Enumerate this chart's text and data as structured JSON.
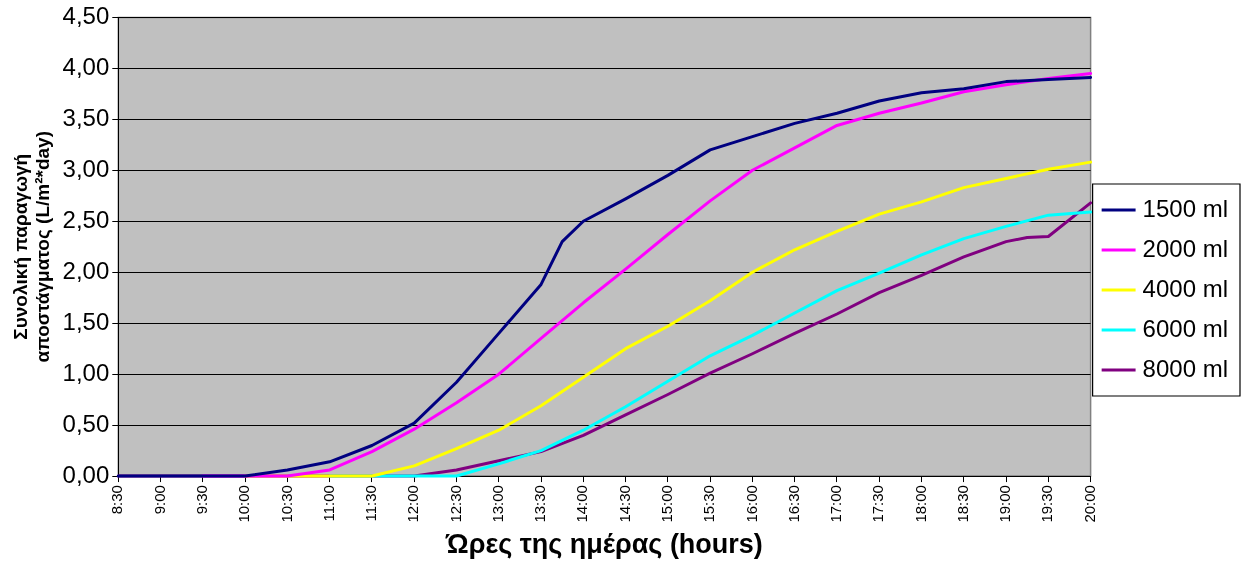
{
  "chart_data": {
    "type": "line",
    "xlabel": "Ώρες της ημέρας (hours)",
    "ylabel": "Συνολική παραγωγή\nαποστάγματος (L/m²*day)",
    "xlim": [
      8.5,
      20
    ],
    "xticks": [
      {
        "value": 8.5,
        "label": "8:30"
      },
      {
        "value": 9,
        "label": "9:00"
      },
      {
        "value": 9.5,
        "label": "9:30"
      },
      {
        "value": 10,
        "label": "10:00"
      },
      {
        "value": 10.5,
        "label": "10:30"
      },
      {
        "value": 11,
        "label": "11:00"
      },
      {
        "value": 11.5,
        "label": "11:30"
      },
      {
        "value": 12,
        "label": "12:00"
      },
      {
        "value": 12.5,
        "label": "12:30"
      },
      {
        "value": 13,
        "label": "13:00"
      },
      {
        "value": 13.5,
        "label": "13:30"
      },
      {
        "value": 14,
        "label": "14:00"
      },
      {
        "value": 14.5,
        "label": "14:30"
      },
      {
        "value": 15,
        "label": "15:00"
      },
      {
        "value": 15.5,
        "label": "15:30"
      },
      {
        "value": 16,
        "label": "16:00"
      },
      {
        "value": 16.5,
        "label": "16:30"
      },
      {
        "value": 17,
        "label": "17:00"
      },
      {
        "value": 17.5,
        "label": "17:30"
      },
      {
        "value": 18,
        "label": "18:00"
      },
      {
        "value": 18.5,
        "label": "18:30"
      },
      {
        "value": 19,
        "label": "19:00"
      },
      {
        "value": 19.5,
        "label": "19:30"
      },
      {
        "value": 20,
        "label": "20:00"
      }
    ],
    "ylim": [
      0,
      4.5
    ],
    "yticks": [
      {
        "value": 0,
        "label": "0,00"
      },
      {
        "value": 0.5,
        "label": "0,50"
      },
      {
        "value": 1,
        "label": "1,00"
      },
      {
        "value": 1.5,
        "label": "1,50"
      },
      {
        "value": 2,
        "label": "2,00"
      },
      {
        "value": 2.5,
        "label": "2,50"
      },
      {
        "value": 3,
        "label": "3,00"
      },
      {
        "value": 3.5,
        "label": "3,50"
      },
      {
        "value": 4,
        "label": "4,00"
      },
      {
        "value": 4.5,
        "label": "4,50"
      }
    ],
    "grid": "y",
    "legend": "right",
    "marker": "none",
    "line_style": "solid",
    "series": [
      {
        "name": "1500 ml",
        "color": "#000080",
        "x": [
          8.5,
          9,
          9.5,
          10,
          10.5,
          11,
          11.5,
          12,
          12.5,
          13,
          13.5,
          13.75,
          14,
          14.5,
          15,
          15.5,
          16,
          16.5,
          17,
          17.5,
          18,
          18.5,
          19,
          19.5,
          20
        ],
        "values": [
          0,
          0,
          0,
          0,
          0.06,
          0.14,
          0.3,
          0.52,
          0.92,
          1.4,
          1.88,
          2.3,
          2.5,
          2.72,
          2.95,
          3.2,
          3.33,
          3.46,
          3.56,
          3.68,
          3.76,
          3.8,
          3.87,
          3.89,
          3.91
        ]
      },
      {
        "name": "2000 ml",
        "color": "#ff00ff",
        "x": [
          9.5,
          10,
          10.5,
          11,
          11.5,
          12,
          12.5,
          13,
          13.5,
          14,
          14.5,
          15,
          15.5,
          16,
          16.5,
          17,
          17.5,
          18,
          18.5,
          19,
          19.5,
          20
        ],
        "values": [
          0,
          0,
          0,
          0.06,
          0.24,
          0.46,
          0.72,
          1,
          1.35,
          1.7,
          2.03,
          2.37,
          2.7,
          3,
          3.22,
          3.44,
          3.56,
          3.66,
          3.77,
          3.84,
          3.9,
          3.95
        ]
      },
      {
        "name": "4000 ml",
        "color": "#ffff00",
        "x": [
          10,
          10.5,
          11,
          11.5,
          12,
          12.5,
          13,
          13.5,
          14,
          14.5,
          15,
          15.5,
          16,
          16.5,
          17,
          17.5,
          18,
          18.5,
          19,
          19.5,
          20
        ],
        "values": [
          0,
          0,
          0,
          0,
          0.1,
          0.27,
          0.45,
          0.69,
          0.97,
          1.25,
          1.47,
          1.72,
          2,
          2.22,
          2.4,
          2.57,
          2.69,
          2.83,
          2.92,
          3.01,
          3.08
        ]
      },
      {
        "name": "6000 ml",
        "color": "#00ffff",
        "x": [
          11,
          11.5,
          12,
          12.5,
          13,
          13.5,
          14,
          14.5,
          15,
          15.5,
          16,
          16.5,
          17,
          17.5,
          18,
          18.5,
          19,
          19.5,
          20
        ],
        "values": [
          0,
          0,
          0,
          0,
          0.12,
          0.25,
          0.45,
          0.68,
          0.93,
          1.18,
          1.38,
          1.6,
          1.82,
          1.99,
          2.17,
          2.33,
          2.45,
          2.56,
          2.59
        ]
      },
      {
        "name": "8000 ml",
        "color": "#800080",
        "x": [
          8.5,
          9,
          9.5,
          10,
          10.5,
          11,
          11.5,
          12,
          12.5,
          13,
          13.5,
          14,
          14.5,
          15,
          15.5,
          16,
          16.5,
          17,
          17.5,
          18,
          18.5,
          19,
          19.25,
          19.5,
          20
        ],
        "values": [
          0,
          0,
          0,
          0,
          0,
          0,
          0,
          0,
          0.06,
          0.15,
          0.24,
          0.4,
          0.6,
          0.8,
          1.01,
          1.2,
          1.4,
          1.59,
          1.8,
          1.97,
          2.15,
          2.3,
          2.34,
          2.35,
          2.68
        ]
      }
    ]
  }
}
